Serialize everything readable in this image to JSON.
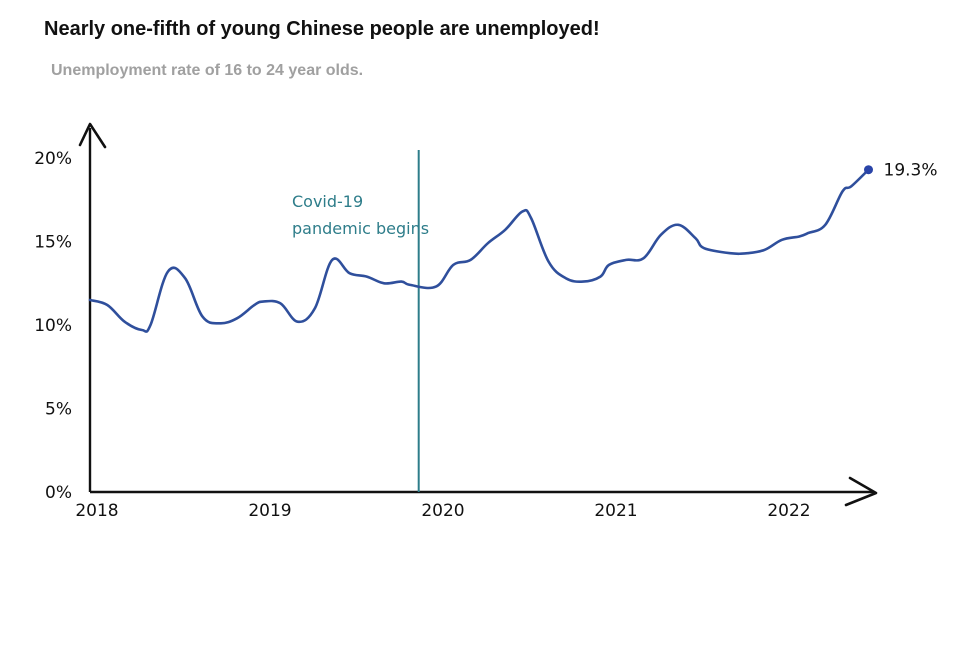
{
  "header": {
    "title": "Nearly one-fifth of young Chinese people are unemployed!",
    "subtitle": "Unemployment rate of 16 to 24 year olds."
  },
  "colors": {
    "line": "#2f4f9c",
    "marker": "#2a44a8",
    "annotation": "#2e7d8a",
    "axis": "#111111",
    "title": "#111111",
    "subtitle": "#a0a0a0"
  },
  "chart_data": {
    "type": "line",
    "title": "Nearly one-fifth of young Chinese people are unemployed!",
    "subtitle": "Unemployment rate of 16 to 24 year olds.",
    "xlabel": "",
    "ylabel": "",
    "x_ticks": [
      "2018",
      "2019",
      "2020",
      "2021",
      "2022"
    ],
    "y_ticks": [
      "0%",
      "5%",
      "10%",
      "15%",
      "20%"
    ],
    "ylim": [
      0,
      20
    ],
    "grid": false,
    "series": [
      {
        "x": [
          2018.0,
          2018.1,
          2018.2,
          2018.3,
          2018.35,
          2018.45,
          2018.55,
          2018.65,
          2018.75,
          2018.85,
          2018.95,
          2019.0,
          2019.1,
          2019.2,
          2019.3,
          2019.4,
          2019.5,
          2019.6,
          2019.7,
          2019.8,
          2019.85,
          2020.0,
          2020.1,
          2020.2,
          2020.3,
          2020.4,
          2020.5,
          2020.55,
          2020.65,
          2020.75,
          2020.85,
          2020.95,
          2021.0,
          2021.1,
          2021.2,
          2021.3,
          2021.4,
          2021.5,
          2021.55,
          2021.7,
          2021.8,
          2021.9,
          2022.0,
          2022.1,
          2022.15,
          2022.25,
          2022.35,
          2022.4,
          2022.5
        ],
        "values": [
          11.5,
          11.2,
          10.2,
          9.7,
          10.0,
          13.2,
          12.8,
          10.5,
          10.1,
          10.4,
          11.2,
          11.4,
          11.3,
          10.2,
          11.0,
          13.9,
          13.1,
          12.9,
          12.5,
          12.6,
          12.4,
          12.3,
          13.6,
          13.9,
          14.9,
          15.7,
          16.8,
          16.4,
          13.8,
          12.8,
          12.6,
          12.9,
          13.6,
          13.9,
          14.0,
          15.4,
          16.0,
          15.2,
          14.6,
          14.3,
          14.3,
          14.5,
          15.1,
          15.3,
          15.5,
          16.0,
          18.0,
          18.3,
          19.3
        ]
      }
    ],
    "end_label": "19.3%",
    "annotations": [
      {
        "x": 2019.9,
        "label_line1": "Covid-19",
        "label_line2": "pandemic begins"
      }
    ]
  }
}
